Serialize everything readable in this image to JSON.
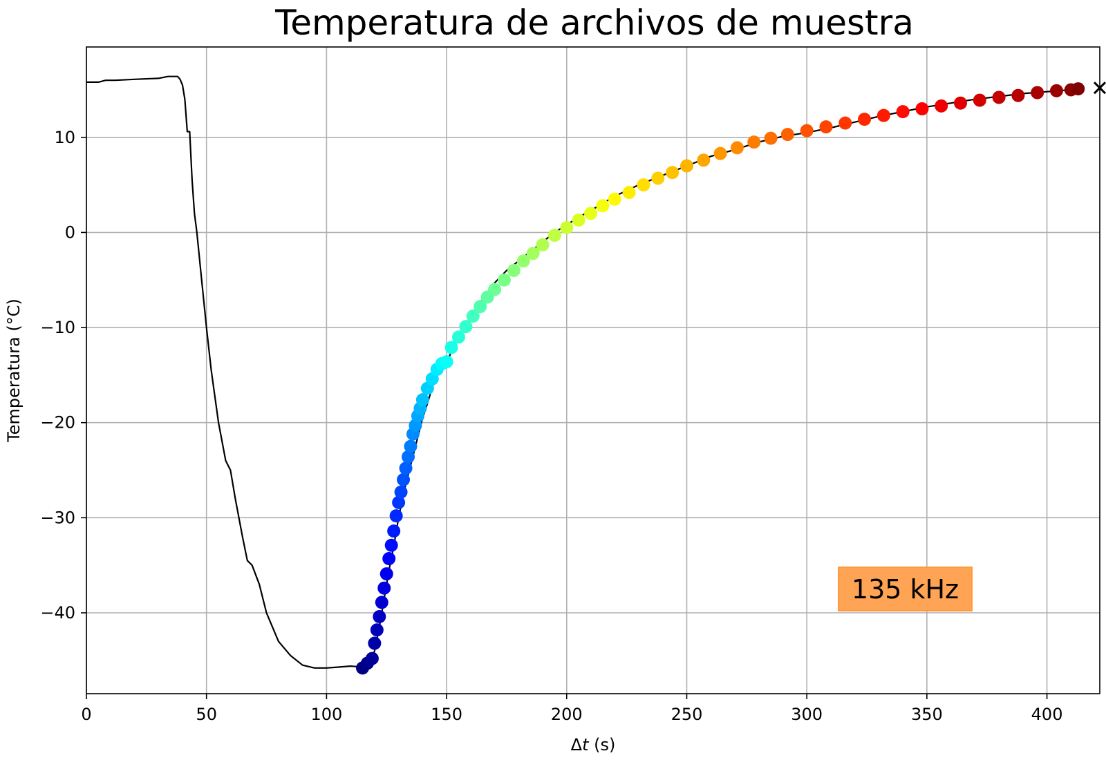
{
  "chart_data": {
    "type": "line",
    "title": "Temperatura de archivos de muestra",
    "xlabel_prefix": "Δ",
    "xlabel_var": "t",
    "xlabel_unit": " (s)",
    "ylabel": "Temperatura (°C)",
    "xlim": [
      0,
      422
    ],
    "ylim": [
      -48.5,
      19.5
    ],
    "xticks": [
      0,
      50,
      100,
      150,
      200,
      250,
      300,
      350,
      400
    ],
    "xtick_labels": [
      "0",
      "50",
      "100",
      "150",
      "200",
      "250",
      "300",
      "350",
      "400"
    ],
    "yticks": [
      10,
      0,
      -10,
      -20,
      -30,
      -40
    ],
    "ytick_labels": [
      "10",
      "0",
      "−10",
      "−20",
      "−30",
      "−40"
    ],
    "grid": true,
    "line_color": "#000000",
    "annotation": {
      "text": "135 kHz",
      "box_color": "#ffa354",
      "edge_color": "#ff9a3c"
    },
    "series": [
      {
        "style": "line",
        "x": [
          0,
          5,
          8,
          12,
          20,
          30,
          34,
          38,
          39,
          40,
          41,
          42,
          43,
          44,
          45,
          46,
          48,
          50,
          52,
          55,
          58,
          60,
          62,
          65,
          67,
          69,
          72,
          75,
          80,
          85,
          90,
          95,
          100,
          105,
          110,
          115,
          118,
          120,
          122,
          124,
          126,
          128,
          130,
          132,
          134,
          136,
          138,
          140,
          142,
          145,
          148,
          150,
          152,
          155,
          160,
          165,
          170,
          175,
          180,
          185,
          190,
          195,
          200,
          205,
          210,
          220,
          230,
          240,
          250,
          260,
          270,
          280,
          290,
          300,
          310,
          320,
          330,
          340,
          350,
          360,
          370,
          380,
          390,
          400,
          410,
          413
        ],
        "y": [
          15.8,
          15.8,
          16.0,
          16.0,
          16.1,
          16.2,
          16.4,
          16.4,
          16.1,
          15.5,
          14.0,
          10.6,
          10.6,
          5.5,
          2.0,
          0.0,
          -5.0,
          -10.0,
          -14.5,
          -20.0,
          -24.0,
          -25.0,
          -28.0,
          -32.0,
          -34.5,
          -35.0,
          -37.0,
          -40.0,
          -43.0,
          -44.5,
          -45.5,
          -45.8,
          -45.8,
          -45.7,
          -45.6,
          -45.7,
          -45.3,
          -44.0,
          -41.5,
          -38.5,
          -35.5,
          -33.0,
          -30.0,
          -27.5,
          -25.5,
          -23.5,
          -21.5,
          -19.5,
          -18.0,
          -15.5,
          -14.0,
          -13.8,
          -12.5,
          -11.0,
          -9.0,
          -7.0,
          -5.3,
          -4.0,
          -3.0,
          -2.0,
          -1.0,
          0.0,
          0.8,
          1.6,
          2.3,
          3.8,
          5.0,
          6.0,
          7.0,
          8.0,
          8.7,
          9.5,
          10.1,
          10.5,
          11.0,
          11.6,
          12.2,
          12.7,
          13.2,
          13.6,
          14.0,
          14.3,
          14.6,
          14.8,
          15.0,
          15.1
        ]
      },
      {
        "style": "colored-markers",
        "colormap": "jet",
        "x": [
          115,
          117,
          119,
          120,
          121,
          122,
          123,
          124,
          125,
          126,
          127,
          128,
          129,
          130,
          131,
          132,
          133,
          134,
          135,
          136,
          137,
          138,
          139,
          140,
          142,
          144,
          146,
          148,
          150,
          152,
          155,
          158,
          161,
          164,
          167,
          170,
          174,
          178,
          182,
          186,
          190,
          195,
          200,
          205,
          210,
          215,
          220,
          226,
          232,
          238,
          244,
          250,
          257,
          264,
          271,
          278,
          285,
          292,
          300,
          308,
          316,
          324,
          332,
          340,
          348,
          356,
          364,
          372,
          380,
          388,
          396,
          404,
          410,
          413
        ],
        "y": [
          -45.8,
          -45.3,
          -44.8,
          -43.2,
          -41.8,
          -40.4,
          -38.9,
          -37.4,
          -35.9,
          -34.3,
          -32.9,
          -31.4,
          -29.8,
          -28.4,
          -27.3,
          -26.0,
          -24.8,
          -23.6,
          -22.5,
          -21.2,
          -20.3,
          -19.3,
          -18.5,
          -17.6,
          -16.4,
          -15.4,
          -14.4,
          -13.8,
          -13.6,
          -12.1,
          -11.0,
          -9.9,
          -8.8,
          -7.8,
          -6.8,
          -6.0,
          -5.0,
          -4.0,
          -3.0,
          -2.2,
          -1.3,
          -0.3,
          0.5,
          1.3,
          2.0,
          2.8,
          3.5,
          4.2,
          5.0,
          5.7,
          6.3,
          7.0,
          7.6,
          8.3,
          8.9,
          9.5,
          9.9,
          10.3,
          10.7,
          11.1,
          11.5,
          11.9,
          12.3,
          12.7,
          13.0,
          13.3,
          13.6,
          13.9,
          14.2,
          14.4,
          14.7,
          14.9,
          15.0,
          15.1
        ]
      },
      {
        "style": "end-marker",
        "marker": "x",
        "x": [
          422
        ],
        "y": [
          15.2
        ]
      }
    ]
  }
}
